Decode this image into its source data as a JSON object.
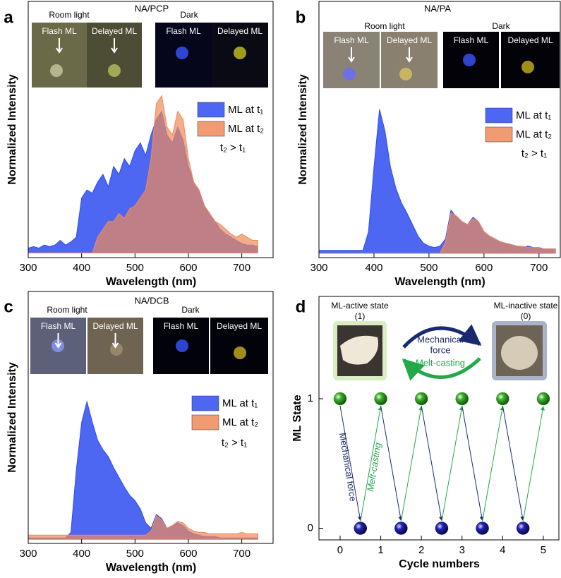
{
  "chart_data": [
    {
      "type": "area",
      "panel": "a",
      "title": "NA/PCP",
      "x": [
        300,
        310,
        320,
        330,
        340,
        350,
        360,
        370,
        380,
        390,
        400,
        410,
        420,
        430,
        440,
        450,
        460,
        470,
        480,
        490,
        500,
        510,
        520,
        530,
        540,
        550,
        560,
        570,
        580,
        590,
        600,
        610,
        620,
        630,
        640,
        650,
        660,
        670,
        680,
        690,
        700,
        710,
        720,
        730
      ],
      "series": [
        {
          "name": "ML at t₁",
          "color": "#2e4cf0",
          "values": [
            0.03,
            0.04,
            0.03,
            0.05,
            0.04,
            0.05,
            0.08,
            0.05,
            0.07,
            0.1,
            0.35,
            0.4,
            0.38,
            0.45,
            0.5,
            0.42,
            0.55,
            0.5,
            0.6,
            0.55,
            0.65,
            0.7,
            0.62,
            0.75,
            0.85,
            0.9,
            0.75,
            0.7,
            0.8,
            0.72,
            0.55,
            0.45,
            0.4,
            0.3,
            0.25,
            0.2,
            0.15,
            0.12,
            0.1,
            0.08,
            0.06,
            0.05,
            0.05,
            0.04
          ]
        },
        {
          "name": "ML at t₂",
          "color": "#f08a5a",
          "values": [
            0,
            0,
            0,
            0,
            0,
            0,
            0,
            0,
            0,
            0,
            0,
            0,
            0,
            0.1,
            0.15,
            0.2,
            0.2,
            0.25,
            0.22,
            0.28,
            0.3,
            0.35,
            0.4,
            0.6,
            0.95,
            1.0,
            0.8,
            0.75,
            0.9,
            0.85,
            0.6,
            0.45,
            0.4,
            0.3,
            0.25,
            0.2,
            0.18,
            0.15,
            0.12,
            0.1,
            0.12,
            0.1,
            0.08,
            0.08
          ]
        }
      ],
      "xlim": [
        300,
        760
      ],
      "xticks": [
        300,
        400,
        500,
        600,
        700
      ],
      "ylim": [
        -0.03,
        1.6
      ],
      "xlabel": "Wavelength (nm)",
      "ylabel": "Normalized Intensity",
      "annotation": "t₂ > t₁",
      "legend": "right",
      "insets": {
        "room": "Room light",
        "dark": "Dark",
        "flash": "Flash ML",
        "delayed": "Delayed ML"
      }
    },
    {
      "type": "area",
      "panel": "b",
      "title": "NA/PA",
      "x": [
        300,
        310,
        320,
        330,
        340,
        350,
        360,
        370,
        380,
        390,
        400,
        410,
        420,
        430,
        440,
        450,
        460,
        470,
        480,
        490,
        500,
        510,
        520,
        530,
        540,
        550,
        560,
        570,
        580,
        590,
        600,
        610,
        620,
        630,
        640,
        650,
        660,
        670,
        680,
        690,
        700,
        710,
        720,
        730
      ],
      "series": [
        {
          "name": "ML at t₁",
          "color": "#2e4cf0",
          "values": [
            0.02,
            0.02,
            0.02,
            0.02,
            0.02,
            0.02,
            0.02,
            0.02,
            0.02,
            0.15,
            0.6,
            1.0,
            0.85,
            0.6,
            0.45,
            0.35,
            0.28,
            0.2,
            0.12,
            0.07,
            0.05,
            0.04,
            0.05,
            0.1,
            0.3,
            0.25,
            0.22,
            0.2,
            0.25,
            0.22,
            0.15,
            0.12,
            0.1,
            0.08,
            0.07,
            0.06,
            0.05,
            0.04,
            0.05,
            0.04,
            0.04,
            0.03,
            0.03,
            0.03
          ]
        },
        {
          "name": "ML at t₂",
          "color": "#f08a5a",
          "values": [
            0,
            0,
            0,
            0,
            0,
            0,
            0,
            0,
            0,
            0,
            0,
            0,
            0,
            0,
            0,
            0,
            0,
            0,
            0,
            0,
            0,
            0,
            0,
            0.08,
            0.28,
            0.26,
            0.22,
            0.2,
            0.24,
            0.22,
            0.15,
            0.12,
            0.1,
            0.08,
            0.07,
            0.06,
            0.05,
            0.05,
            0.04,
            0.04,
            0.04,
            0.03,
            0.03,
            0.03
          ]
        }
      ],
      "xlim": [
        300,
        740
      ],
      "xticks": [
        300,
        400,
        500,
        600,
        700
      ],
      "ylim": [
        -0.03,
        1.75
      ],
      "xlabel": "Wavelength (nm)",
      "ylabel": "Normalized Intensity",
      "annotation": "t₂ > t₁",
      "legend": "right",
      "insets": {
        "room": "Room light",
        "dark": "Dark",
        "flash": "Flash ML",
        "delayed": "Delayed ML"
      }
    },
    {
      "type": "area",
      "panel": "c",
      "title": "NA/DCB",
      "x": [
        300,
        310,
        320,
        330,
        340,
        350,
        360,
        370,
        380,
        390,
        400,
        410,
        420,
        430,
        440,
        450,
        460,
        470,
        480,
        490,
        500,
        510,
        520,
        530,
        540,
        550,
        560,
        570,
        580,
        590,
        600,
        610,
        620,
        630,
        640,
        650,
        660,
        670,
        680,
        690,
        700,
        710,
        720,
        730
      ],
      "series": [
        {
          "name": "ML at t₁",
          "color": "#2e4cf0",
          "values": [
            0.01,
            0.01,
            0.01,
            0.01,
            0.01,
            0.01,
            0.01,
            0.01,
            0.05,
            0.5,
            0.85,
            1.0,
            0.85,
            0.72,
            0.65,
            0.6,
            0.52,
            0.45,
            0.38,
            0.32,
            0.28,
            0.22,
            0.12,
            0.08,
            0.18,
            0.15,
            0.08,
            0.1,
            0.12,
            0.1,
            0.06,
            0.04,
            0.03,
            0.02,
            0.02,
            0.02,
            0.01,
            0.01,
            0.01,
            0.01,
            0.01,
            0.01,
            0.01,
            0.01
          ]
        },
        {
          "name": "ML at t₂",
          "color": "#f08a5a",
          "values": [
            0.03,
            0.03,
            0.03,
            0.03,
            0.03,
            0.03,
            0.03,
            0.03,
            0.03,
            0.03,
            0.03,
            0.03,
            0.03,
            0.03,
            0.03,
            0.03,
            0.03,
            0.03,
            0.03,
            0.03,
            0.03,
            0.03,
            0.03,
            0.06,
            0.17,
            0.14,
            0.08,
            0.1,
            0.13,
            0.12,
            0.08,
            0.06,
            0.05,
            0.05,
            0.04,
            0.04,
            0.04,
            0.04,
            0.04,
            0.04,
            0.05,
            0.04,
            0.04,
            0.04
          ]
        }
      ],
      "xlim": [
        300,
        760
      ],
      "xticks": [
        300,
        400,
        500,
        600,
        700
      ],
      "ylim": [
        -0.03,
        1.8
      ],
      "xlabel": "Wavelength (nm)",
      "ylabel": "Normalized Intensity",
      "annotation": "t₂ > t₁",
      "legend": "right",
      "insets": {
        "room": "Room light",
        "dark": "Dark",
        "flash": "Flash ML",
        "delayed": "Delayed ML"
      }
    },
    {
      "type": "scatter",
      "panel": "d",
      "series": [
        {
          "color": "#2f9a22",
          "x": [
            0,
            1,
            2,
            3,
            4,
            5
          ],
          "values": [
            1,
            1,
            1,
            1,
            1,
            1
          ]
        },
        {
          "color": "#1b1a9c",
          "x": [
            0.5,
            1.5,
            2.5,
            3.5,
            4.5
          ],
          "values": [
            0,
            0,
            0,
            0,
            0
          ]
        }
      ],
      "xlim": [
        -0.52,
        5.4
      ],
      "xticks": [
        0,
        1,
        2,
        3,
        4,
        5
      ],
      "ylim": [
        -0.09,
        1.79
      ],
      "yticks": [
        0,
        1
      ],
      "xlabel": "Cycle numbers",
      "ylabel": "ML State",
      "active_label": "ML-active state",
      "active_state": "(1)",
      "inactive_label": "ML-inactive state",
      "inactive_state": "(0)",
      "cycle_force": [
        "Mechanical",
        "force"
      ],
      "cycle_melt": "Melt-casting",
      "arrow_force": "Mechanical force",
      "arrow_melt": "Melt-casting"
    }
  ]
}
